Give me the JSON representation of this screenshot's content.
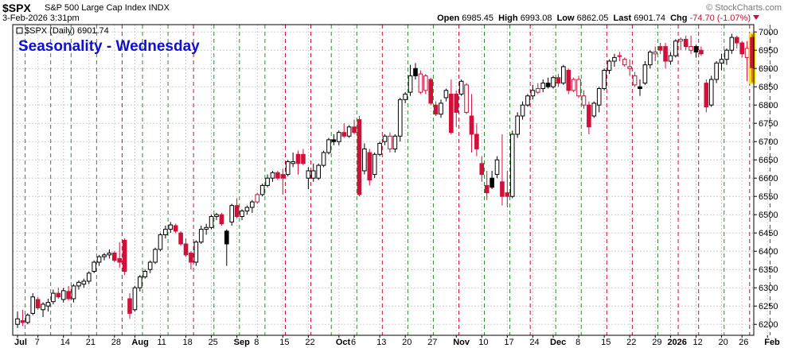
{
  "header": {
    "symbol": "$SPX",
    "description": "S&P 500 Large Cap Index INDX",
    "datetime": "3-Feb-2026 3:31pm",
    "open_label": "Open",
    "open": "6985.45",
    "high_label": "High",
    "high": "6993.08",
    "low_label": "Low",
    "low": "6862.05",
    "last_label": "Last",
    "last": "6901.74",
    "chg_label": "Chg",
    "chg": "-74.70 (-1.07%)",
    "watermark": "© StockCharts.com"
  },
  "legend": {
    "text": "$SPX (Daily) 6901.74"
  },
  "annotation": {
    "text": "Seasonality - Wednesday",
    "color": "#1010d0"
  },
  "colors": {
    "up_body": "#ffffff",
    "up_border": "#000000",
    "down_filled": "#d0103a",
    "black_candle": "#000000",
    "grid": "#cfcfcf",
    "wed_line": "#c8102e",
    "other_line": "#2e8b2e",
    "highlight": "#f4e000"
  },
  "chart_data": {
    "type": "candlestick",
    "ylim": [
      6170,
      7020
    ],
    "yticks": [
      6200,
      6250,
      6300,
      6350,
      6400,
      6450,
      6500,
      6550,
      6600,
      6650,
      6700,
      6750,
      6800,
      6850,
      6900,
      6950,
      7000
    ],
    "xlabels": [
      {
        "label": "Jul",
        "i": 0
      },
      {
        "label": "7",
        "i": 4
      },
      {
        "label": "14",
        "i": 9
      },
      {
        "label": "21",
        "i": 14
      },
      {
        "label": "28",
        "i": 19
      },
      {
        "label": "Aug",
        "i": 23
      },
      {
        "label": "11",
        "i": 28
      },
      {
        "label": "18",
        "i": 33
      },
      {
        "label": "25",
        "i": 38
      },
      {
        "label": "Sep",
        "i": 43
      },
      {
        "label": "8",
        "i": 47
      },
      {
        "label": "15",
        "i": 52
      },
      {
        "label": "22",
        "i": 57
      },
      {
        "label": "Oct",
        "i": 63
      },
      {
        "label": "6",
        "i": 66
      },
      {
        "label": "13",
        "i": 71
      },
      {
        "label": "20",
        "i": 76
      },
      {
        "label": "27",
        "i": 81
      },
      {
        "label": "Nov",
        "i": 86
      },
      {
        "label": "10",
        "i": 91
      },
      {
        "label": "17",
        "i": 96
      },
      {
        "label": "24",
        "i": 101
      },
      {
        "label": "Dec",
        "i": 105
      },
      {
        "label": "8",
        "i": 110
      },
      {
        "label": "15",
        "i": 115
      },
      {
        "label": "22",
        "i": 120
      },
      {
        "label": "29",
        "i": 125
      },
      {
        "label": "2026",
        "i": 128
      },
      {
        "label": "12",
        "i": 133
      },
      {
        "label": "20",
        "i": 138
      },
      {
        "label": "26",
        "i": 142
      },
      {
        "label": "Feb",
        "i": 147
      }
    ],
    "vlines": [
      {
        "i": 2,
        "c": "g"
      },
      {
        "i": 7,
        "c": "g"
      },
      {
        "i": 11,
        "c": "g"
      },
      {
        "i": 16,
        "c": "g"
      },
      {
        "i": 21,
        "c": "r"
      },
      {
        "i": 25,
        "c": "g"
      },
      {
        "i": 30,
        "c": "g"
      },
      {
        "i": 35,
        "c": "r"
      },
      {
        "i": 39,
        "c": "g"
      },
      {
        "i": 44,
        "c": "g"
      },
      {
        "i": 49,
        "c": "g"
      },
      {
        "i": 53,
        "c": "r"
      },
      {
        "i": 58,
        "c": "r"
      },
      {
        "i": 62,
        "c": "g"
      },
      {
        "i": 67,
        "c": "g"
      },
      {
        "i": 72,
        "c": "r"
      },
      {
        "i": 77,
        "c": "g"
      },
      {
        "i": 82,
        "c": "g"
      },
      {
        "i": 87,
        "c": "r"
      },
      {
        "i": 92,
        "c": "g"
      },
      {
        "i": 97,
        "c": "g"
      },
      {
        "i": 101,
        "c": "r"
      },
      {
        "i": 106,
        "c": "g"
      },
      {
        "i": 111,
        "c": "g"
      },
      {
        "i": 116,
        "c": "r"
      },
      {
        "i": 121,
        "c": "r"
      },
      {
        "i": 126,
        "c": "g"
      },
      {
        "i": 130,
        "c": "r"
      },
      {
        "i": 134,
        "c": "r"
      },
      {
        "i": 139,
        "c": "g"
      },
      {
        "i": 144,
        "c": "r"
      },
      {
        "i": 148,
        "c": "r"
      }
    ],
    "candles": [
      [
        6200,
        6235,
        6190,
        6215,
        "u"
      ],
      [
        6210,
        6240,
        6195,
        6205,
        "d"
      ],
      [
        6205,
        6230,
        6200,
        6225,
        "u"
      ],
      [
        6230,
        6285,
        6225,
        6275,
        "u"
      ],
      [
        6268,
        6275,
        6240,
        6245,
        "d"
      ],
      [
        6240,
        6260,
        6220,
        6255,
        "u"
      ],
      [
        6250,
        6270,
        6235,
        6260,
        "u"
      ],
      [
        6262,
        6295,
        6255,
        6285,
        "u"
      ],
      [
        6285,
        6300,
        6270,
        6275,
        "d"
      ],
      [
        6268,
        6300,
        6260,
        6292,
        "u"
      ],
      [
        6290,
        6305,
        6265,
        6270,
        "d"
      ],
      [
        6270,
        6310,
        6260,
        6305,
        "u"
      ],
      [
        6305,
        6320,
        6295,
        6315,
        "u"
      ],
      [
        6310,
        6325,
        6300,
        6318,
        "u"
      ],
      [
        6318,
        6345,
        6310,
        6340,
        "u"
      ],
      [
        6345,
        6375,
        6340,
        6370,
        "u"
      ],
      [
        6370,
        6390,
        6360,
        6385,
        "u"
      ],
      [
        6385,
        6395,
        6375,
        6390,
        "u"
      ],
      [
        6390,
        6405,
        6380,
        6395,
        "u"
      ],
      [
        6395,
        6400,
        6370,
        6375,
        "d"
      ],
      [
        6380,
        6425,
        6355,
        6370,
        "d"
      ],
      [
        6430,
        6435,
        6335,
        6345,
        "d"
      ],
      [
        6270,
        6285,
        6215,
        6230,
        "d"
      ],
      [
        6240,
        6305,
        6235,
        6300,
        "u"
      ],
      [
        6300,
        6335,
        6290,
        6330,
        "u"
      ],
      [
        6330,
        6350,
        6325,
        6345,
        "u"
      ],
      [
        6350,
        6375,
        6340,
        6370,
        "u"
      ],
      [
        6370,
        6410,
        6365,
        6405,
        "u"
      ],
      [
        6405,
        6450,
        6400,
        6445,
        "u"
      ],
      [
        6445,
        6470,
        6435,
        6460,
        "u"
      ],
      [
        6460,
        6480,
        6450,
        6472,
        "u"
      ],
      [
        6470,
        6475,
        6450,
        6455,
        "d"
      ],
      [
        6450,
        6455,
        6415,
        6420,
        "d"
      ],
      [
        6420,
        6435,
        6385,
        6390,
        "d"
      ],
      [
        6395,
        6400,
        6350,
        6370,
        "d"
      ],
      [
        6370,
        6430,
        6360,
        6425,
        "u"
      ],
      [
        6425,
        6470,
        6420,
        6460,
        "u"
      ],
      [
        6460,
        6475,
        6445,
        6465,
        "u"
      ],
      [
        6465,
        6500,
        6460,
        6495,
        "u"
      ],
      [
        6495,
        6505,
        6485,
        6500,
        "u"
      ],
      [
        6500,
        6505,
        6470,
        6475,
        "d"
      ],
      [
        6455,
        6460,
        6360,
        6420,
        "k"
      ],
      [
        6480,
        6530,
        6470,
        6525,
        "u"
      ],
      [
        6525,
        6545,
        6490,
        6495,
        "d"
      ],
      [
        6495,
        6515,
        6485,
        6510,
        "u"
      ],
      [
        6510,
        6525,
        6500,
        6520,
        "u"
      ],
      [
        6520,
        6540,
        6505,
        6535,
        "u"
      ],
      [
        6535,
        6560,
        6530,
        6555,
        "b"
      ],
      [
        6555,
        6585,
        6550,
        6580,
        "u"
      ],
      [
        6580,
        6610,
        6575,
        6600,
        "u"
      ],
      [
        6600,
        6620,
        6590,
        6615,
        "u"
      ],
      [
        6615,
        6620,
        6595,
        6600,
        "d"
      ],
      [
        6600,
        6625,
        6555,
        6610,
        "d"
      ],
      [
        6610,
        6650,
        6605,
        6645,
        "u"
      ],
      [
        6645,
        6670,
        6630,
        6640,
        "u"
      ],
      [
        6640,
        6675,
        6610,
        6665,
        "d"
      ],
      [
        6665,
        6680,
        6635,
        6640,
        "d"
      ],
      [
        6600,
        6630,
        6570,
        6620,
        "u"
      ],
      [
        6620,
        6640,
        6590,
        6600,
        "u"
      ],
      [
        6600,
        6640,
        6595,
        6635,
        "u"
      ],
      [
        6635,
        6675,
        6630,
        6670,
        "u"
      ],
      [
        6670,
        6710,
        6665,
        6705,
        "u"
      ],
      [
        6705,
        6720,
        6690,
        6700,
        "k"
      ],
      [
        6700,
        6730,
        6690,
        6725,
        "u"
      ],
      [
        6725,
        6750,
        6710,
        6715,
        "d"
      ],
      [
        6715,
        6745,
        6710,
        6740,
        "u"
      ],
      [
        6740,
        6760,
        6720,
        6725,
        "d"
      ],
      [
        6760,
        6770,
        6550,
        6555,
        "d"
      ],
      [
        6620,
        6695,
        6610,
        6680,
        "u"
      ],
      [
        6670,
        6680,
        6580,
        6595,
        "d"
      ],
      [
        6610,
        6670,
        6600,
        6665,
        "u"
      ],
      [
        6665,
        6700,
        6660,
        6695,
        "u"
      ],
      [
        6700,
        6720,
        6690,
        6715,
        "u"
      ],
      [
        6715,
        6725,
        6670,
        6680,
        "b"
      ],
      [
        6680,
        6720,
        6670,
        6715,
        "u"
      ],
      [
        6715,
        6820,
        6700,
        6815,
        "u"
      ],
      [
        6815,
        6835,
        6805,
        6830,
        "u"
      ],
      [
        6835,
        6910,
        6825,
        6880,
        "u"
      ],
      [
        6900,
        6915,
        6870,
        6880,
        "k"
      ],
      [
        6885,
        6895,
        6830,
        6835,
        "b"
      ],
      [
        6840,
        6885,
        6830,
        6880,
        "b"
      ],
      [
        6870,
        6875,
        6800,
        6805,
        "d"
      ],
      [
        6800,
        6810,
        6770,
        6775,
        "d"
      ],
      [
        6775,
        6815,
        6765,
        6805,
        "u"
      ],
      [
        6820,
        6845,
        6810,
        6840,
        "u"
      ],
      [
        6830,
        6870,
        6720,
        6725,
        "d"
      ],
      [
        6780,
        6840,
        6740,
        6830,
        "d"
      ],
      [
        6830,
        6870,
        6825,
        6865,
        "u"
      ],
      [
        6855,
        6860,
        6775,
        6780,
        "b"
      ],
      [
        6770,
        6830,
        6670,
        6720,
        "d"
      ],
      [
        6720,
        6750,
        6660,
        6680,
        "d"
      ],
      [
        6640,
        6660,
        6590,
        6610,
        "d"
      ],
      [
        6580,
        6620,
        6540,
        6560,
        "d"
      ],
      [
        6600,
        6620,
        6570,
        6575,
        "k"
      ],
      [
        6610,
        6660,
        6600,
        6650,
        "u"
      ],
      [
        6590,
        6720,
        6525,
        6550,
        "d"
      ],
      [
        6560,
        6620,
        6520,
        6550,
        "d"
      ],
      [
        6550,
        6730,
        6545,
        6720,
        "u"
      ],
      [
        6720,
        6780,
        6710,
        6770,
        "u"
      ],
      [
        6770,
        6810,
        6760,
        6800,
        "u"
      ],
      [
        6800,
        6830,
        6795,
        6825,
        "u"
      ],
      [
        6825,
        6855,
        6815,
        6840,
        "u"
      ],
      [
        6835,
        6860,
        6830,
        6845,
        "b"
      ],
      [
        6845,
        6870,
        6835,
        6860,
        "u"
      ],
      [
        6860,
        6875,
        6845,
        6850,
        "k"
      ],
      [
        6850,
        6880,
        6845,
        6875,
        "u"
      ],
      [
        6875,
        6885,
        6850,
        6860,
        "d"
      ],
      [
        6860,
        6910,
        6855,
        6905,
        "u"
      ],
      [
        6895,
        6900,
        6830,
        6840,
        "d"
      ],
      [
        6840,
        6875,
        6835,
        6870,
        "b"
      ],
      [
        6870,
        6880,
        6820,
        6825,
        "b"
      ],
      [
        6825,
        6840,
        6790,
        6800,
        "b"
      ],
      [
        6800,
        6810,
        6720,
        6740,
        "d"
      ],
      [
        6770,
        6810,
        6765,
        6805,
        "u"
      ],
      [
        6800,
        6850,
        6780,
        6845,
        "u"
      ],
      [
        6845,
        6900,
        6840,
        6895,
        "u"
      ],
      [
        6895,
        6925,
        6885,
        6920,
        "u"
      ],
      [
        6920,
        6940,
        6905,
        6930,
        "u"
      ],
      [
        6935,
        6945,
        6920,
        6935,
        "d"
      ],
      [
        6925,
        6930,
        6905,
        6910,
        "b"
      ],
      [
        6905,
        6925,
        6880,
        6900,
        "b"
      ],
      [
        6880,
        6890,
        6850,
        6855,
        "b"
      ],
      [
        6850,
        6870,
        6825,
        6845,
        "k"
      ],
      [
        6860,
        6920,
        6855,
        6910,
        "u"
      ],
      [
        6910,
        6950,
        6900,
        6945,
        "u"
      ],
      [
        6945,
        6960,
        6920,
        6940,
        "b"
      ],
      [
        6950,
        6970,
        6940,
        6960,
        "d"
      ],
      [
        6960,
        6970,
        6900,
        6920,
        "d"
      ],
      [
        6920,
        6945,
        6910,
        6935,
        "u"
      ],
      [
        6935,
        6980,
        6930,
        6975,
        "u"
      ],
      [
        6975,
        6985,
        6950,
        6980,
        "b"
      ],
      [
        6980,
        6990,
        6950,
        6960,
        "d"
      ],
      [
        6960,
        6990,
        6940,
        6950,
        "b"
      ],
      [
        6945,
        6965,
        6930,
        6960,
        "k"
      ],
      [
        6950,
        6960,
        6935,
        6940,
        "d"
      ],
      [
        6860,
        6870,
        6780,
        6795,
        "d"
      ],
      [
        6800,
        6880,
        6795,
        6870,
        "u"
      ],
      [
        6870,
        6920,
        6860,
        6915,
        "u"
      ],
      [
        6915,
        6940,
        6895,
        6925,
        "u"
      ],
      [
        6925,
        6955,
        6910,
        6950,
        "u"
      ],
      [
        6950,
        6995,
        6940,
        6985,
        "u"
      ],
      [
        6985,
        6990,
        6955,
        6970,
        "d"
      ],
      [
        6970,
        6975,
        6930,
        6940,
        "d"
      ],
      [
        6955,
        6975,
        6865,
        6930,
        "b"
      ],
      [
        6985,
        6993,
        6862,
        6902,
        "d"
      ]
    ]
  }
}
